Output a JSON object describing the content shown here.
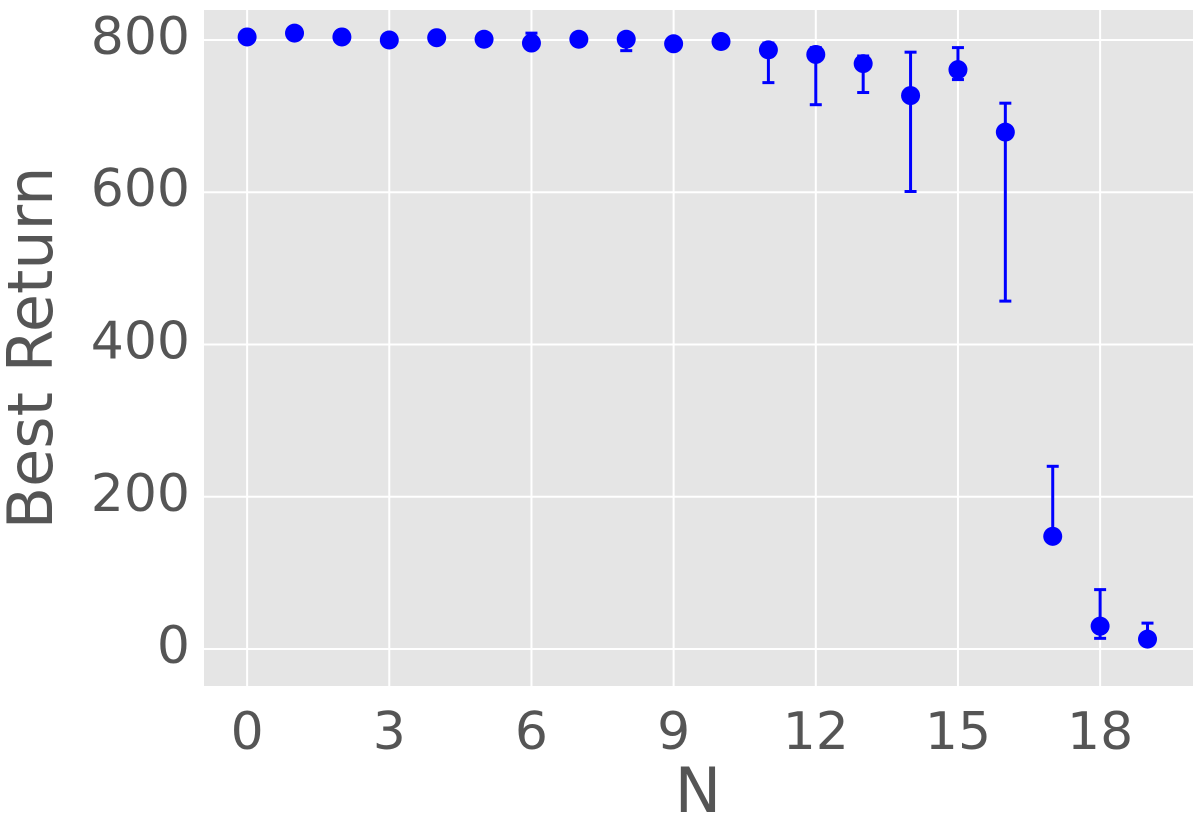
{
  "chart_data": {
    "type": "errorbar",
    "x_label": "N",
    "y_label": "Best Return",
    "x": [
      0,
      1,
      2,
      3,
      4,
      5,
      6,
      7,
      8,
      9,
      10,
      11,
      12,
      13,
      14,
      15,
      16,
      17,
      18,
      19
    ],
    "values": [
      804,
      809,
      804,
      800,
      803,
      801,
      796,
      801,
      801,
      795,
      798,
      787,
      781,
      769,
      727,
      761,
      679,
      148,
      30,
      13
    ],
    "lower": [
      null,
      null,
      null,
      null,
      null,
      null,
      795,
      null,
      786,
      null,
      null,
      744,
      715,
      731,
      601,
      748,
      457,
      148,
      14,
      8
    ],
    "upper": [
      null,
      null,
      null,
      null,
      null,
      null,
      809,
      null,
      807,
      null,
      null,
      796,
      790,
      779,
      784,
      790,
      717,
      240,
      78,
      34
    ],
    "color": "#0000ff",
    "xlim": [
      -0.91,
      19.96
    ],
    "ylim": [
      -48.6,
      839.4
    ],
    "xticks": [
      0,
      3,
      6,
      9,
      12,
      15,
      18
    ],
    "yticks": [
      0,
      200,
      400,
      600,
      800
    ],
    "grid": true
  }
}
